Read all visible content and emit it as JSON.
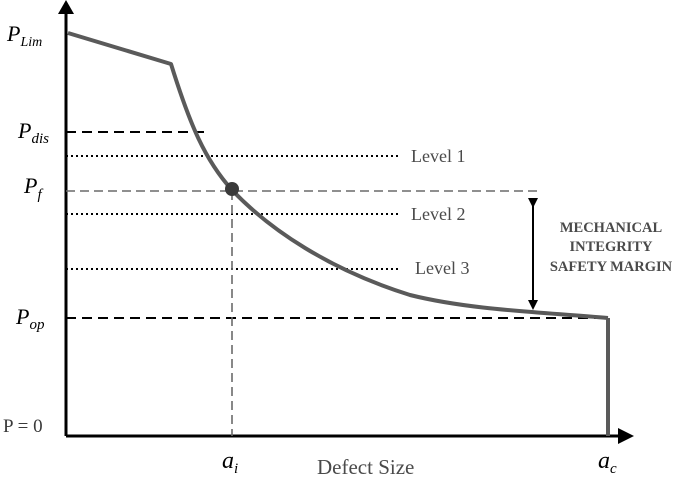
{
  "labels": {
    "p_lim": {
      "main": "P",
      "sub": "Lim"
    },
    "p_dis": {
      "main": "P",
      "sub": "dis"
    },
    "p_f": {
      "main": "P",
      "sub": "f"
    },
    "p_op": {
      "main": "P",
      "sub": "op"
    },
    "p_zero": "P = 0",
    "a_i": {
      "main": "a",
      "sub": "i"
    },
    "a_c": {
      "main": "a",
      "sub": "c"
    },
    "x_axis_title": "Defect Size"
  },
  "levels": [
    "Level 1",
    "Level 2",
    "Level 3"
  ],
  "safety_margin": [
    "MECHANICAL",
    "INTEGRITY",
    "SAFETY MARGIN"
  ],
  "colors": {
    "curve": "#5a5a5a",
    "axis": "#000000",
    "text_gray": "#4a4a4a"
  }
}
